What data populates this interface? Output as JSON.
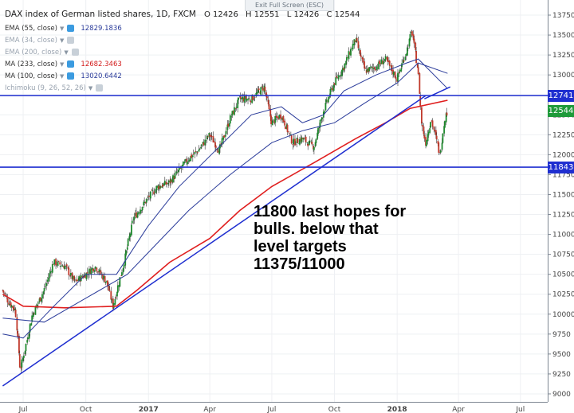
{
  "header": {
    "title": "DAX index of German listed shares, 1D, FXCM",
    "ohlc": {
      "open": "O 12426",
      "high": "H 12551",
      "low": "L 12426",
      "close": "C 12544"
    },
    "exit_fullscreen": "Exit Full Screen (ESC)"
  },
  "indicators": [
    {
      "label": "EMA (55, close)",
      "value": "12829.1836",
      "value_color": "#2a3b9a",
      "active": true
    },
    {
      "label": "EMA (34, close)",
      "value": "",
      "active": false
    },
    {
      "label": "EMA (200, close)",
      "value": "",
      "active": false
    },
    {
      "label": "MA (233, close)",
      "value": "12682.3463",
      "value_color": "#d31c1c",
      "active": true
    },
    {
      "label": "MA (100, close)",
      "value": "13020.6442",
      "value_color": "#2a3b9a",
      "active": true
    },
    {
      "label": "Ichimoku (9, 26, 52, 26)",
      "value": "",
      "active": false
    }
  ],
  "annotation": [
    "11800 last hopes for",
    "bulls. below that",
    "level targets",
    "11375/11000"
  ],
  "price_badges": [
    {
      "label": "12741",
      "value": 12741,
      "color": "#1f2fd0"
    },
    {
      "label": "12544",
      "value": 12544,
      "color": "#1f9a3a"
    },
    {
      "label": "11843",
      "value": 11843,
      "color": "#1f2fd0"
    }
  ],
  "chart_data": {
    "type": "candlestick",
    "title": "DAX index of German listed shares, 1D, FXCM",
    "ylim": [
      8900,
      13800
    ],
    "y_ticks": [
      9000,
      9250,
      9500,
      9750,
      10000,
      10250,
      10500,
      10750,
      11000,
      11250,
      11500,
      11750,
      12000,
      12250,
      12500,
      12750,
      13000,
      13250,
      13500,
      13750
    ],
    "x_ticks": [
      "Jul",
      "Oct",
      "2017",
      "Apr",
      "Jul",
      "Oct",
      "2018",
      "Apr",
      "Jul"
    ],
    "x_tick_bold": [
      false,
      false,
      true,
      false,
      false,
      false,
      true,
      false,
      false
    ],
    "horizontal_lines": [
      12741,
      11843
    ],
    "price_path": [
      [
        "2016-06-01",
        10300
      ],
      [
        "2016-06-10",
        10150
      ],
      [
        "2016-06-20",
        10050
      ],
      [
        "2016-06-27",
        9300
      ],
      [
        "2016-07-05",
        9600
      ],
      [
        "2016-07-15",
        10000
      ],
      [
        "2016-08-01",
        10300
      ],
      [
        "2016-08-15",
        10650
      ],
      [
        "2016-09-01",
        10600
      ],
      [
        "2016-09-15",
        10400
      ],
      [
        "2016-10-01",
        10500
      ],
      [
        "2016-10-15",
        10600
      ],
      [
        "2016-11-01",
        10400
      ],
      [
        "2016-11-10",
        10100
      ],
      [
        "2016-11-25",
        10600
      ],
      [
        "2016-12-10",
        11200
      ],
      [
        "2016-12-31",
        11450
      ],
      [
        "2017-01-15",
        11600
      ],
      [
        "2017-02-01",
        11650
      ],
      [
        "2017-02-15",
        11800
      ],
      [
        "2017-03-01",
        11950
      ],
      [
        "2017-03-15",
        12050
      ],
      [
        "2017-04-01",
        12250
      ],
      [
        "2017-04-15",
        12050
      ],
      [
        "2017-05-01",
        12450
      ],
      [
        "2017-05-15",
        12700
      ],
      [
        "2017-06-01",
        12700
      ],
      [
        "2017-06-20",
        12850
      ],
      [
        "2017-07-01",
        12400
      ],
      [
        "2017-07-15",
        12500
      ],
      [
        "2017-08-01",
        12150
      ],
      [
        "2017-08-15",
        12200
      ],
      [
        "2017-09-01",
        12100
      ],
      [
        "2017-09-15",
        12550
      ],
      [
        "2017-10-01",
        12900
      ],
      [
        "2017-10-15",
        13100
      ],
      [
        "2017-11-01",
        13450
      ],
      [
        "2017-11-15",
        13050
      ],
      [
        "2017-12-01",
        13100
      ],
      [
        "2017-12-15",
        13200
      ],
      [
        "2018-01-01",
        12950
      ],
      [
        "2018-01-15",
        13300
      ],
      [
        "2018-01-23",
        13550
      ],
      [
        "2018-02-01",
        13050
      ],
      [
        "2018-02-06",
        12400
      ],
      [
        "2018-02-12",
        12150
      ],
      [
        "2018-02-20",
        12450
      ],
      [
        "2018-03-01",
        12150
      ],
      [
        "2018-03-05",
        12000
      ],
      [
        "2018-03-12",
        12450
      ],
      [
        "2018-03-16",
        12544
      ]
    ],
    "series": [
      {
        "name": "MA (233, close)",
        "color": "#e01f1f",
        "points": [
          [
            "2016-06-01",
            10250
          ],
          [
            "2016-07-01",
            10100
          ],
          [
            "2016-09-01",
            10080
          ],
          [
            "2016-11-15",
            10100
          ],
          [
            "2016-12-15",
            10300
          ],
          [
            "2017-02-01",
            10650
          ],
          [
            "2017-04-01",
            10950
          ],
          [
            "2017-05-15",
            11300
          ],
          [
            "2017-07-01",
            11600
          ],
          [
            "2017-09-01",
            11900
          ],
          [
            "2017-11-01",
            12200
          ],
          [
            "2017-12-15",
            12400
          ],
          [
            "2018-01-20",
            12580
          ],
          [
            "2018-03-16",
            12682
          ]
        ]
      },
      {
        "name": "MA (100, close)",
        "color": "#2a3b9a",
        "points": [
          [
            "2016-06-01",
            9950
          ],
          [
            "2016-08-01",
            9900
          ],
          [
            "2016-10-01",
            10200
          ],
          [
            "2016-12-01",
            10500
          ],
          [
            "2017-01-15",
            10900
          ],
          [
            "2017-03-01",
            11300
          ],
          [
            "2017-05-01",
            11750
          ],
          [
            "2017-07-01",
            12150
          ],
          [
            "2017-08-15",
            12300
          ],
          [
            "2017-10-01",
            12400
          ],
          [
            "2017-11-15",
            12650
          ],
          [
            "2018-01-01",
            12900
          ],
          [
            "2018-02-01",
            13150
          ],
          [
            "2018-03-16",
            13020
          ]
        ]
      },
      {
        "name": "EMA (55, close)",
        "color": "#2a3b9a",
        "points": [
          [
            "2016-06-01",
            9750
          ],
          [
            "2016-07-01",
            9700
          ],
          [
            "2016-08-15",
            10100
          ],
          [
            "2016-10-01",
            10500
          ],
          [
            "2016-11-15",
            10500
          ],
          [
            "2016-12-31",
            11100
          ],
          [
            "2017-02-15",
            11600
          ],
          [
            "2017-04-15",
            12100
          ],
          [
            "2017-06-01",
            12500
          ],
          [
            "2017-07-15",
            12600
          ],
          [
            "2017-08-15",
            12400
          ],
          [
            "2017-09-15",
            12500
          ],
          [
            "2017-10-15",
            12800
          ],
          [
            "2017-12-01",
            13000
          ],
          [
            "2018-01-15",
            13150
          ],
          [
            "2018-02-01",
            13200
          ],
          [
            "2018-03-16",
            12829
          ]
        ]
      }
    ],
    "trendline": {
      "color": "#1f2fd0",
      "from": [
        "2016-06-01",
        9100
      ],
      "to": [
        "2018-02-12",
        12741
      ]
    },
    "resistance_segment": {
      "color": "#1f2fd0",
      "from": [
        "2018-02-10",
        12700
      ],
      "to": [
        "2018-03-20",
        12850
      ]
    }
  }
}
